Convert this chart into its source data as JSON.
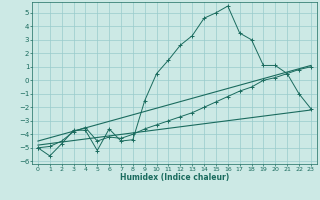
{
  "title": "",
  "xlabel": "Humidex (Indice chaleur)",
  "xlim": [
    -0.5,
    23.5
  ],
  "ylim": [
    -6.2,
    5.8
  ],
  "yticks": [
    5,
    4,
    3,
    2,
    1,
    0,
    -1,
    -2,
    -3,
    -4,
    -5,
    -6
  ],
  "xticks": [
    0,
    1,
    2,
    3,
    4,
    5,
    6,
    7,
    8,
    9,
    10,
    11,
    12,
    13,
    14,
    15,
    16,
    17,
    18,
    19,
    20,
    21,
    22,
    23
  ],
  "background_color": "#cce9e5",
  "grid_color": "#99cccc",
  "line_color": "#1a6b5e",
  "curve1_x": [
    0,
    1,
    2,
    3,
    4,
    5,
    6,
    7,
    8,
    9,
    10,
    11,
    12,
    13,
    14,
    15,
    16,
    17,
    18,
    19,
    20,
    21,
    22,
    23
  ],
  "curve1_y": [
    -5.0,
    -5.6,
    -4.7,
    -3.7,
    -3.7,
    -5.2,
    -3.6,
    -4.5,
    -4.4,
    -1.5,
    0.5,
    1.5,
    2.6,
    3.3,
    4.6,
    5.0,
    5.5,
    3.5,
    3.0,
    1.1,
    1.1,
    0.5,
    -1.0,
    -2.1
  ],
  "curve2_x": [
    0,
    1,
    2,
    3,
    4,
    5,
    6,
    7,
    8,
    9,
    10,
    11,
    12,
    13,
    14,
    15,
    16,
    17,
    18,
    19,
    20,
    21,
    22,
    23
  ],
  "curve2_y": [
    -5.0,
    -4.9,
    -4.5,
    -3.8,
    -3.5,
    -4.5,
    -4.2,
    -4.3,
    -4.0,
    -3.6,
    -3.3,
    -3.0,
    -2.7,
    -2.4,
    -2.0,
    -1.6,
    -1.2,
    -0.8,
    -0.5,
    0.0,
    0.2,
    0.5,
    0.8,
    1.0
  ],
  "curve3_x": [
    0,
    23
  ],
  "curve3_y": [
    -4.8,
    -2.2
  ],
  "curve4_x": [
    0,
    23
  ],
  "curve4_y": [
    -4.5,
    1.1
  ]
}
